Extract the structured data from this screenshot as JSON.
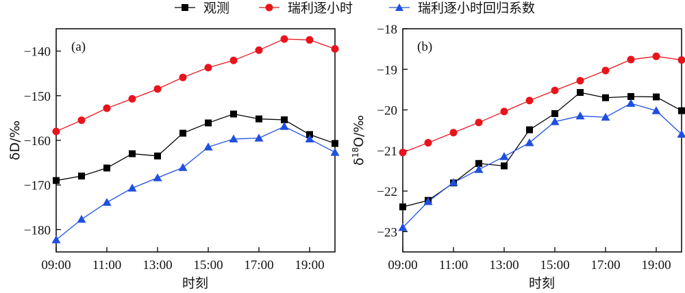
{
  "legend": [
    {
      "name": "观测",
      "color": "#000000",
      "marker": "square"
    },
    {
      "name": "瑞利逐小时",
      "color": "#e8141c",
      "marker": "circle"
    },
    {
      "name": "瑞利逐小时回归系数",
      "color": "#1f4fe0",
      "marker": "triangle"
    }
  ],
  "chart_data": [
    {
      "type": "line",
      "panel_label": "(a)",
      "xlabel": "时刻",
      "ylabel": "δD/‰",
      "x": [
        "09:00",
        "10:00",
        "11:00",
        "12:00",
        "13:00",
        "14:00",
        "15:00",
        "16:00",
        "17:00",
        "18:00",
        "19:00",
        "20:00"
      ],
      "xticks": [
        "09:00",
        "11:00",
        "13:00",
        "15:00",
        "17:00",
        "19:00"
      ],
      "yticks": [
        "−140",
        "−150",
        "−160",
        "−170",
        "−180"
      ],
      "ytick_values": [
        -140,
        -150,
        -160,
        -170,
        -180
      ],
      "ylim": [
        -185,
        -135
      ],
      "series": [
        {
          "name": "观测",
          "values": [
            -169.0,
            -168.0,
            -166.2,
            -163.0,
            -163.5,
            -158.4,
            -156.1,
            -154.1,
            -155.2,
            -155.4,
            -158.7,
            -160.7
          ]
        },
        {
          "name": "瑞利逐小时",
          "values": [
            -158.0,
            -155.5,
            -152.8,
            -150.7,
            -148.5,
            -145.9,
            -143.7,
            -142.1,
            -139.8,
            -137.3,
            -137.5,
            -139.5
          ]
        },
        {
          "name": "瑞利逐小时回归系数",
          "values": [
            -182.3,
            -177.7,
            -173.9,
            -170.7,
            -168.4,
            -166.1,
            -161.5,
            -159.7,
            -159.5,
            -156.9,
            -159.7,
            -162.7
          ]
        }
      ]
    },
    {
      "type": "line",
      "panel_label": "(b)",
      "xlabel": "时刻",
      "ylabel_prefix": "δ",
      "ylabel_sup": "18",
      "ylabel_suffix": "O/‰",
      "x": [
        "09:00",
        "10:00",
        "11:00",
        "12:00",
        "13:00",
        "14:00",
        "15:00",
        "16:00",
        "17:00",
        "18:00",
        "19:00",
        "20:00"
      ],
      "xticks": [
        "09:00",
        "11:00",
        "13:00",
        "15:00",
        "17:00",
        "19:00"
      ],
      "yticks": [
        "−18",
        "−19",
        "−20",
        "−21",
        "−22",
        "−23"
      ],
      "ytick_values": [
        -18,
        -19,
        -20,
        -21,
        -22,
        -23
      ],
      "ylim": [
        -23.5,
        -18
      ],
      "series": [
        {
          "name": "观测",
          "values": [
            -22.39,
            -22.23,
            -21.8,
            -21.32,
            -21.38,
            -20.49,
            -20.09,
            -19.57,
            -19.7,
            -19.67,
            -19.68,
            -20.02
          ]
        },
        {
          "name": "瑞利逐小时",
          "values": [
            -21.05,
            -20.81,
            -20.56,
            -20.31,
            -20.04,
            -19.77,
            -19.52,
            -19.28,
            -19.03,
            -18.76,
            -18.68,
            -18.77
          ]
        },
        {
          "name": "瑞利逐小时回归系数",
          "values": [
            -22.9,
            -22.26,
            -21.79,
            -21.47,
            -21.15,
            -20.81,
            -20.29,
            -20.15,
            -20.18,
            -19.84,
            -20.02,
            -20.6
          ]
        }
      ]
    }
  ]
}
